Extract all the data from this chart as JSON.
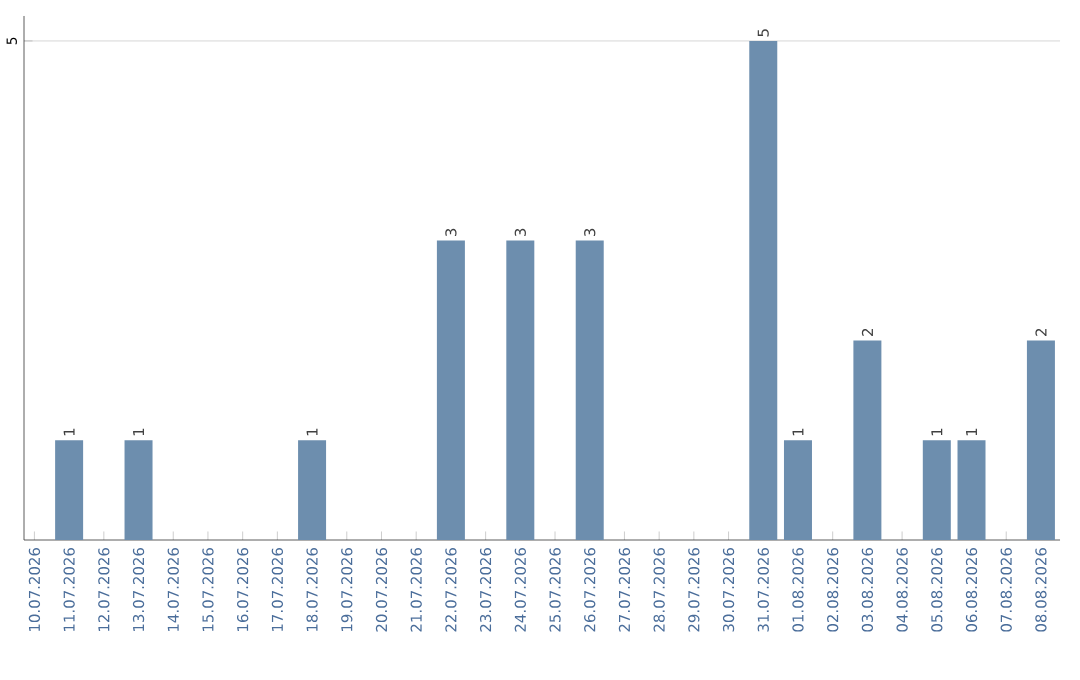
{
  "chart_data": {
    "type": "bar",
    "categories": [
      "10.07.2026",
      "11.07.2026",
      "12.07.2026",
      "13.07.2026",
      "14.07.2026",
      "15.07.2026",
      "16.07.2026",
      "17.07.2026",
      "18.07.2026",
      "19.07.2026",
      "20.07.2026",
      "21.07.2026",
      "22.07.2026",
      "23.07.2026",
      "24.07.2026",
      "25.07.2026",
      "26.07.2026",
      "27.07.2026",
      "28.07.2026",
      "29.07.2026",
      "30.07.2026",
      "31.07.2026",
      "01.08.2026",
      "02.08.2026",
      "03.08.2026",
      "04.08.2026",
      "05.08.2026",
      "06.08.2026",
      "07.08.2026",
      "08.08.2026"
    ],
    "values": [
      0,
      1,
      0,
      1,
      0,
      0,
      0,
      0,
      1,
      0,
      0,
      0,
      3,
      0,
      3,
      0,
      3,
      0,
      0,
      0,
      0,
      5,
      1,
      0,
      2,
      0,
      1,
      1,
      0,
      2
    ],
    "value_labels": [
      null,
      "1",
      null,
      "1",
      null,
      null,
      null,
      null,
      "1",
      null,
      null,
      null,
      "3",
      null,
      "3",
      null,
      "3",
      null,
      null,
      null,
      null,
      "5",
      "1",
      null,
      "2",
      null,
      "1",
      "1",
      null,
      "2"
    ],
    "color": "#6d8eae",
    "ylim": [
      0,
      5.25
    ],
    "yticks": [
      5
    ],
    "grid": "y"
  }
}
